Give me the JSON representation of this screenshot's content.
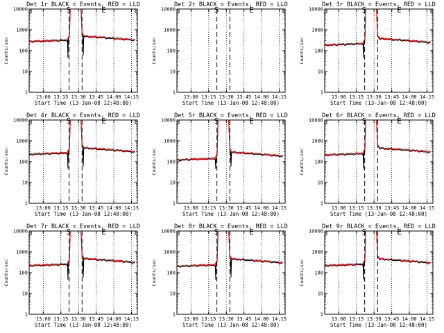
{
  "chart_data": [
    {
      "type": "line",
      "title": "Det 1r BLACK = Events, RED = LLD",
      "xlabel": "Start Time (13-Jan-08 12:48:00)",
      "ylabel": "Counts/sec",
      "yscale": "log",
      "ylim": [
        1,
        10000
      ],
      "xlim": [
        0,
        92
      ],
      "x_tick_labels": [
        "13:00",
        "13:15",
        "13:30",
        "13:45",
        "14:00",
        "14:15"
      ],
      "y_tick_labels": [
        "1",
        "10",
        "100",
        "1000",
        "10000"
      ],
      "markers": {
        "start": "S",
        "end": "E"
      },
      "has_data": true,
      "dip_black_at_end": true,
      "level": 340,
      "post": 520,
      "series": [
        {
          "name": "Events",
          "color": "#000000"
        },
        {
          "name": "LLD",
          "color": "#ff0000"
        }
      ]
    },
    {
      "type": "line",
      "title": "Det 2r BLACK = Events, RED = LLD",
      "xlabel": "Start Time (13-Jan-08 12:48:00)",
      "ylabel": "Counts/sec",
      "yscale": "log",
      "ylim": [
        1,
        10000
      ],
      "xlim": [
        0,
        92
      ],
      "x_tick_labels": [
        "13:00",
        "13:15",
        "13:30",
        "13:45",
        "14:00",
        "14:15"
      ],
      "y_tick_labels": [
        "1",
        "10",
        "100",
        "1000",
        "10000"
      ],
      "markers": {
        "start": "S",
        "end": "E"
      },
      "has_data": false,
      "series": []
    },
    {
      "type": "line",
      "title": "Det 3r BLACK = Events, RED = LLD",
      "xlabel": "Start Time (13-Jan-08 12:48:00)",
      "ylabel": "Counts/sec",
      "yscale": "log",
      "ylim": [
        1,
        10000
      ],
      "xlim": [
        0,
        92
      ],
      "x_tick_labels": [
        "13:00",
        "13:15",
        "13:30",
        "13:45",
        "14:00",
        "14:15"
      ],
      "y_tick_labels": [
        "1",
        "10",
        "100",
        "1000",
        "10000"
      ],
      "markers": {
        "start": "S",
        "end": "E"
      },
      "has_data": true,
      "dip_black_at_end": false,
      "level": 230,
      "post": 400,
      "series": [
        {
          "name": "Events",
          "color": "#000000"
        },
        {
          "name": "LLD",
          "color": "#ff0000"
        }
      ]
    },
    {
      "type": "line",
      "title": "Det 4r BLACK = Events, RED = LLD",
      "xlabel": "Start Time (13-Jan-08 12:48:00)",
      "ylabel": "Counts/sec",
      "yscale": "log",
      "ylim": [
        1,
        10000
      ],
      "xlim": [
        0,
        92
      ],
      "x_tick_labels": [
        "13:00",
        "13:15",
        "13:30",
        "13:45",
        "14:00",
        "14:15"
      ],
      "y_tick_labels": [
        "1",
        "10",
        "100",
        "1000",
        "10000"
      ],
      "markers": {
        "start": "S",
        "end": "E"
      },
      "has_data": true,
      "dip_black_at_end": true,
      "level": 280,
      "post": 480,
      "series": [
        {
          "name": "Events",
          "color": "#000000"
        },
        {
          "name": "LLD",
          "color": "#ff0000"
        }
      ]
    },
    {
      "type": "line",
      "title": "Det 5r BLACK = Events, RED = LLD",
      "xlabel": "Start Time (13-Jan-08 12:48:00)",
      "ylabel": "Counts/sec",
      "yscale": "log",
      "ylim": [
        1,
        10000
      ],
      "xlim": [
        0,
        92
      ],
      "x_tick_labels": [
        "13:00",
        "13:15",
        "13:30",
        "13:45",
        "14:00",
        "14:15"
      ],
      "y_tick_labels": [
        "1",
        "10",
        "100",
        "1000",
        "10000"
      ],
      "markers": {
        "start": "S",
        "end": "E"
      },
      "has_data": true,
      "dip_black_at_end": true,
      "level": 150,
      "post": 300,
      "series": [
        {
          "name": "Events",
          "color": "#000000"
        },
        {
          "name": "LLD",
          "color": "#ff0000"
        }
      ]
    },
    {
      "type": "line",
      "title": "Det 6r BLACK = Events, RED = LLD",
      "xlabel": "Start Time (13-Jan-08 12:48:00)",
      "ylabel": "Counts/sec",
      "yscale": "log",
      "ylim": [
        1,
        10000
      ],
      "xlim": [
        0,
        92
      ],
      "x_tick_labels": [
        "13:00",
        "13:15",
        "13:30",
        "13:45",
        "14:00",
        "14:15"
      ],
      "y_tick_labels": [
        "1",
        "10",
        "100",
        "1000",
        "10000"
      ],
      "markers": {
        "start": "S",
        "end": "E"
      },
      "has_data": true,
      "dip_black_at_end": false,
      "level": 260,
      "post": 470,
      "series": [
        {
          "name": "Events",
          "color": "#000000"
        },
        {
          "name": "LLD",
          "color": "#ff0000"
        }
      ]
    },
    {
      "type": "line",
      "title": "Det 7r BLACK = Events, RED = LLD",
      "xlabel": "Start Time (13-Jan-08 12:48:00)",
      "ylabel": "Counts/sec",
      "yscale": "log",
      "ylim": [
        1,
        10000
      ],
      "xlim": [
        0,
        92
      ],
      "x_tick_labels": [
        "13:00",
        "13:15",
        "13:30",
        "13:45",
        "14:00",
        "14:15"
      ],
      "y_tick_labels": [
        "1",
        "10",
        "100",
        "1000",
        "10000"
      ],
      "markers": {
        "start": "S",
        "end": "E"
      },
      "has_data": true,
      "dip_black_at_end": true,
      "level": 270,
      "post": 500,
      "series": [
        {
          "name": "Events",
          "color": "#000000"
        },
        {
          "name": "LLD",
          "color": "#ff0000"
        }
      ]
    },
    {
      "type": "line",
      "title": "Det 8r BLACK = Events, RED = LLD",
      "xlabel": "Start Time (13-Jan-08 12:48:00)",
      "ylabel": "Counts/sec",
      "yscale": "log",
      "ylim": [
        1,
        10000
      ],
      "xlim": [
        0,
        92
      ],
      "x_tick_labels": [
        "13:00",
        "13:15",
        "13:30",
        "13:45",
        "14:00",
        "14:15"
      ],
      "y_tick_labels": [
        "1",
        "10",
        "100",
        "1000",
        "10000"
      ],
      "markers": {
        "start": "S",
        "end": "E"
      },
      "has_data": true,
      "dip_black_at_end": true,
      "level": 250,
      "post": 480,
      "series": [
        {
          "name": "Events",
          "color": "#000000"
        },
        {
          "name": "LLD",
          "color": "#ff0000"
        }
      ]
    },
    {
      "type": "line",
      "title": "Det 9r BLACK = Events, RED = LLD",
      "xlabel": "Start Time (13-Jan-08 12:48:00)",
      "ylabel": "Counts/sec",
      "yscale": "log",
      "ylim": [
        1,
        10000
      ],
      "xlim": [
        0,
        92
      ],
      "x_tick_labels": [
        "13:00",
        "13:15",
        "13:30",
        "13:45",
        "14:00",
        "14:15"
      ],
      "y_tick_labels": [
        "1",
        "10",
        "100",
        "1000",
        "10000"
      ],
      "markers": {
        "start": "S",
        "end": "E"
      },
      "has_data": true,
      "dip_black_at_end": false,
      "level": 270,
      "post": 480,
      "series": [
        {
          "name": "Events",
          "color": "#000000"
        },
        {
          "name": "LLD",
          "color": "#ff0000"
        }
      ]
    }
  ]
}
